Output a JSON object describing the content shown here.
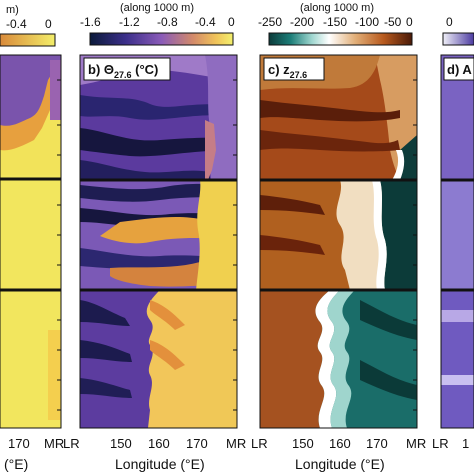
{
  "chart_data": [
    {
      "type": "heatmap",
      "panel": "a",
      "title": "",
      "colorbar": {
        "header": "m)",
        "ticks": [
          "-0.4",
          "0"
        ]
      },
      "x_ticks": [
        "170",
        "MR"
      ],
      "xlabel": "(°E)",
      "colorscale": "purple-orange-yellow"
    },
    {
      "type": "heatmap",
      "panel": "b",
      "title_main": "b) Θ",
      "title_sub": "27.6",
      "title_unit": " (°C)",
      "colorbar": {
        "header": "(along 1000 m)",
        "ticks": [
          "-1.6",
          "-1.2",
          "-0.8",
          "-0.4",
          "0"
        ],
        "range": [
          -1.6,
          0
        ]
      },
      "x_ticks": [
        "LR",
        "150",
        "160",
        "170",
        "MR"
      ],
      "xlabel": "Longitude (°E)",
      "colorscale": "purple-orange-yellow"
    },
    {
      "type": "heatmap",
      "panel": "c",
      "title_main": "c) z",
      "title_sub": "27.6",
      "title_unit": "",
      "colorbar": {
        "header": "(along 1000 m)",
        "ticks": [
          "-250",
          "-200",
          "-150",
          "-100",
          "-50",
          "0"
        ],
        "range": [
          -250,
          0
        ]
      },
      "x_ticks": [
        "LR",
        "150",
        "160",
        "170",
        "MR"
      ],
      "xlabel": "Longitude (°E)",
      "colorscale": "brown-white-teal"
    },
    {
      "type": "heatmap",
      "panel": "d",
      "title_main": "d) A",
      "colorbar": {
        "header": "",
        "ticks": [
          "0"
        ]
      },
      "x_ticks": [
        "LR",
        "1"
      ],
      "colorscale": "purple"
    }
  ]
}
